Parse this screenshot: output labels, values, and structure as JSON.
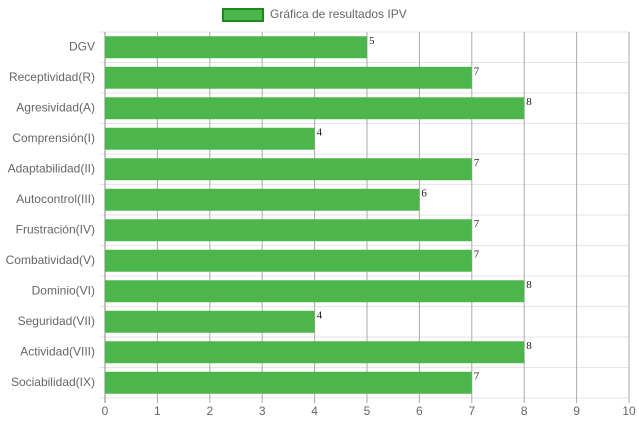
{
  "chart_data": {
    "type": "horizontal-bar",
    "categories": [
      "DGV",
      "Receptividad(R)",
      "Agresividad(A)",
      "Comprensión(I)",
      "Adaptabilidad(II)",
      "Autocontrol(III)",
      "Frustración(IV)",
      "Combatividad(V)",
      "Dominio(VI)",
      "Seguridad(VII)",
      "Actividad(VIII)",
      "Sociabilidad(IX)"
    ],
    "series": [
      {
        "name": "Gráfica de resultados IPV",
        "color": "#4cb54c",
        "values": [
          5,
          7,
          8,
          4,
          7,
          6,
          7,
          7,
          8,
          4,
          8,
          7
        ]
      }
    ],
    "xlim": [
      0,
      10
    ],
    "xticks": [
      0,
      1,
      2,
      3,
      4,
      5,
      6,
      7,
      8,
      9,
      10
    ],
    "grid": true,
    "legend": "top"
  }
}
